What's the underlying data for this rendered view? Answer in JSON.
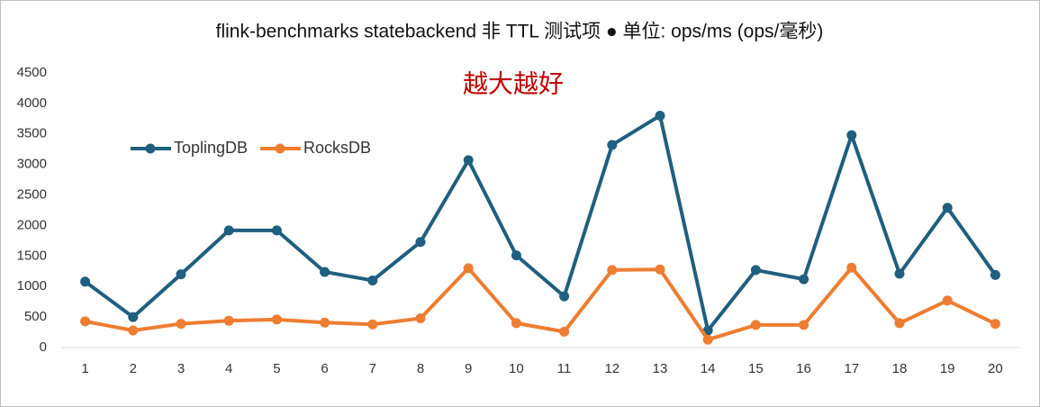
{
  "chart_data": {
    "type": "line",
    "title": "flink-benchmarks statebackend 非 TTL 测试项 ● 单位: ops/ms (ops/毫秒)",
    "annotation": "越大越好",
    "categories": [
      "1",
      "2",
      "3",
      "4",
      "5",
      "6",
      "7",
      "8",
      "9",
      "10",
      "11",
      "12",
      "13",
      "14",
      "15",
      "16",
      "17",
      "18",
      "19",
      "20"
    ],
    "series": [
      {
        "name": "ToplingDB",
        "color": "#1f5f7f",
        "values": [
          1080,
          500,
          1200,
          1920,
          1920,
          1240,
          1100,
          1730,
          3070,
          1510,
          840,
          3320,
          3800,
          280,
          1270,
          1120,
          3480,
          1210,
          2290,
          1190
        ]
      },
      {
        "name": "RocksDB",
        "color": "#ed7d31",
        "values": [
          430,
          280,
          390,
          440,
          460,
          410,
          380,
          480,
          1300,
          400,
          260,
          1270,
          1280,
          130,
          370,
          370,
          1310,
          400,
          770,
          390
        ]
      }
    ],
    "ylim": [
      0,
      4500
    ],
    "yticks": [
      0,
      500,
      1000,
      1500,
      2000,
      2500,
      3000,
      3500,
      4000,
      4500
    ],
    "legend": "upper left",
    "grid": false
  }
}
